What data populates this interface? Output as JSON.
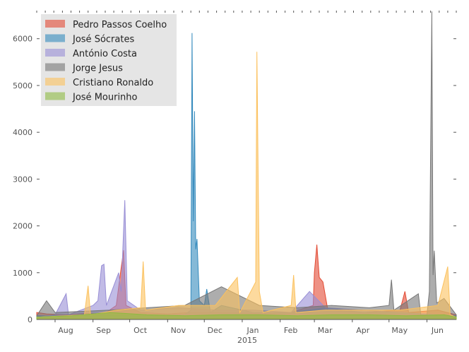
{
  "chart_data": {
    "type": "area",
    "title": "",
    "xlabel": "",
    "ylabel": "",
    "ylim": [
      0,
      6600
    ],
    "xlim": [
      "2014-07-17",
      "2015-06-25"
    ],
    "y_ticks": [
      0,
      1000,
      2000,
      3000,
      4000,
      5000,
      6000
    ],
    "x_ticks": [
      {
        "date": "2014-08-01",
        "label": "Aug"
      },
      {
        "date": "2014-09-01",
        "label": "Sep"
      },
      {
        "date": "2014-10-01",
        "label": "Oct"
      },
      {
        "date": "2014-11-01",
        "label": "Nov"
      },
      {
        "date": "2014-12-01",
        "label": "Dec"
      },
      {
        "date": "2015-01-01",
        "label": "Jan"
      },
      {
        "date": "2015-02-01",
        "label": "Feb"
      },
      {
        "date": "2015-03-01",
        "label": "Mar"
      },
      {
        "date": "2015-04-01",
        "label": "Apr"
      },
      {
        "date": "2015-05-01",
        "label": "May"
      },
      {
        "date": "2015-06-01",
        "label": "Jun"
      }
    ],
    "x_sublabel": "2015",
    "grid": false,
    "legend_position": "top-left",
    "series": [
      {
        "name": "Pedro Passos Coelho",
        "color": "#e24a33",
        "values": [
          [
            "2014-07-17",
            150
          ],
          [
            "2014-07-25",
            120
          ],
          [
            "2014-08-10",
            100
          ],
          [
            "2014-08-25",
            130
          ],
          [
            "2014-09-10",
            120
          ],
          [
            "2014-09-20",
            300
          ],
          [
            "2014-09-24",
            1100
          ],
          [
            "2014-09-26",
            1480
          ],
          [
            "2014-09-28",
            300
          ],
          [
            "2014-10-10",
            150
          ],
          [
            "2014-11-01",
            120
          ],
          [
            "2014-11-20",
            150
          ],
          [
            "2014-12-10",
            150
          ],
          [
            "2015-01-10",
            130
          ],
          [
            "2015-02-10",
            150
          ],
          [
            "2015-02-28",
            300
          ],
          [
            "2015-03-01",
            1000
          ],
          [
            "2015-03-03",
            1600
          ],
          [
            "2015-03-05",
            900
          ],
          [
            "2015-03-08",
            800
          ],
          [
            "2015-03-12",
            200
          ],
          [
            "2015-04-10",
            150
          ],
          [
            "2015-05-10",
            200
          ],
          [
            "2015-05-14",
            600
          ],
          [
            "2015-05-17",
            150
          ],
          [
            "2015-06-10",
            200
          ],
          [
            "2015-06-25",
            100
          ]
        ]
      },
      {
        "name": "José Sócrates",
        "color": "#348abd",
        "values": [
          [
            "2014-07-17",
            80
          ],
          [
            "2014-08-15",
            80
          ],
          [
            "2014-09-15",
            90
          ],
          [
            "2014-10-15",
            80
          ],
          [
            "2014-11-15",
            100
          ],
          [
            "2014-11-20",
            200
          ],
          [
            "2014-11-21",
            6120
          ],
          [
            "2014-11-22",
            2100
          ],
          [
            "2014-11-23",
            4450
          ],
          [
            "2014-11-24",
            1500
          ],
          [
            "2014-11-25",
            1720
          ],
          [
            "2014-11-27",
            400
          ],
          [
            "2014-12-01",
            300
          ],
          [
            "2014-12-03",
            650
          ],
          [
            "2014-12-06",
            150
          ],
          [
            "2014-12-15",
            300
          ],
          [
            "2015-01-10",
            150
          ],
          [
            "2015-02-10",
            150
          ],
          [
            "2015-03-10",
            250
          ],
          [
            "2015-04-10",
            150
          ],
          [
            "2015-05-10",
            150
          ],
          [
            "2015-06-10",
            100
          ],
          [
            "2015-06-25",
            80
          ]
        ]
      },
      {
        "name": "António Costa",
        "color": "#988ed5",
        "values": [
          [
            "2014-07-17",
            50
          ],
          [
            "2014-08-01",
            100
          ],
          [
            "2014-08-10",
            550
          ],
          [
            "2014-08-12",
            100
          ],
          [
            "2014-09-01",
            300
          ],
          [
            "2014-09-05",
            400
          ],
          [
            "2014-09-08",
            1150
          ],
          [
            "2014-09-10",
            1180
          ],
          [
            "2014-09-12",
            300
          ],
          [
            "2014-09-22",
            1000
          ],
          [
            "2014-09-24",
            600
          ],
          [
            "2014-09-27",
            2550
          ],
          [
            "2014-09-29",
            400
          ],
          [
            "2014-10-10",
            200
          ],
          [
            "2014-11-10",
            250
          ],
          [
            "2014-12-10",
            200
          ],
          [
            "2015-01-10",
            200
          ],
          [
            "2015-02-10",
            150
          ],
          [
            "2015-02-25",
            600
          ],
          [
            "2015-03-10",
            250
          ],
          [
            "2015-04-10",
            200
          ],
          [
            "2015-05-10",
            150
          ],
          [
            "2015-06-10",
            100
          ],
          [
            "2015-06-25",
            50
          ]
        ]
      },
      {
        "name": "Jorge Jesus",
        "color": "#777777",
        "values": [
          [
            "2014-07-17",
            80
          ],
          [
            "2014-07-25",
            400
          ],
          [
            "2014-08-01",
            150
          ],
          [
            "2014-09-15",
            200
          ],
          [
            "2014-10-15",
            250
          ],
          [
            "2014-11-15",
            300
          ],
          [
            "2014-12-15",
            700
          ],
          [
            "2015-01-15",
            300
          ],
          [
            "2015-02-15",
            250
          ],
          [
            "2015-03-15",
            300
          ],
          [
            "2015-04-15",
            250
          ],
          [
            "2015-05-01",
            300
          ],
          [
            "2015-05-03",
            850
          ],
          [
            "2015-05-05",
            200
          ],
          [
            "2015-05-25",
            550
          ],
          [
            "2015-05-27",
            100
          ],
          [
            "2015-06-01",
            100
          ],
          [
            "2015-06-03",
            600
          ],
          [
            "2015-06-05",
            6580
          ],
          [
            "2015-06-06",
            950
          ],
          [
            "2015-06-07",
            1470
          ],
          [
            "2015-06-09",
            350
          ],
          [
            "2015-06-15",
            450
          ],
          [
            "2015-06-25",
            100
          ]
        ]
      },
      {
        "name": "Cristiano Ronaldo",
        "color": "#fbc15e",
        "values": [
          [
            "2014-07-17",
            50
          ],
          [
            "2014-08-25",
            100
          ],
          [
            "2014-08-28",
            720
          ],
          [
            "2014-08-30",
            100
          ],
          [
            "2014-09-20",
            200
          ],
          [
            "2014-10-10",
            250
          ],
          [
            "2014-10-12",
            1240
          ],
          [
            "2014-10-14",
            200
          ],
          [
            "2014-11-10",
            300
          ],
          [
            "2014-12-10",
            300
          ],
          [
            "2014-12-28",
            900
          ],
          [
            "2014-12-30",
            150
          ],
          [
            "2015-01-12",
            800
          ],
          [
            "2015-01-13",
            5720
          ],
          [
            "2015-01-15",
            600
          ],
          [
            "2015-01-18",
            150
          ],
          [
            "2015-02-10",
            300
          ],
          [
            "2015-02-12",
            950
          ],
          [
            "2015-02-14",
            150
          ],
          [
            "2015-03-10",
            200
          ],
          [
            "2015-04-10",
            200
          ],
          [
            "2015-05-10",
            200
          ],
          [
            "2015-06-10",
            300
          ],
          [
            "2015-06-18",
            1130
          ],
          [
            "2015-06-20",
            100
          ],
          [
            "2015-06-25",
            50
          ]
        ]
      },
      {
        "name": "José Mourinho",
        "color": "#8eba42",
        "values": [
          [
            "2014-07-17",
            50
          ],
          [
            "2014-08-15",
            80
          ],
          [
            "2014-09-15",
            150
          ],
          [
            "2014-10-15",
            100
          ],
          [
            "2014-11-15",
            80
          ],
          [
            "2014-12-15",
            100
          ],
          [
            "2015-01-15",
            100
          ],
          [
            "2015-02-15",
            80
          ],
          [
            "2015-03-15",
            100
          ],
          [
            "2015-04-15",
            100
          ],
          [
            "2015-05-15",
            80
          ],
          [
            "2015-06-15",
            100
          ],
          [
            "2015-06-25",
            50
          ]
        ]
      }
    ]
  }
}
